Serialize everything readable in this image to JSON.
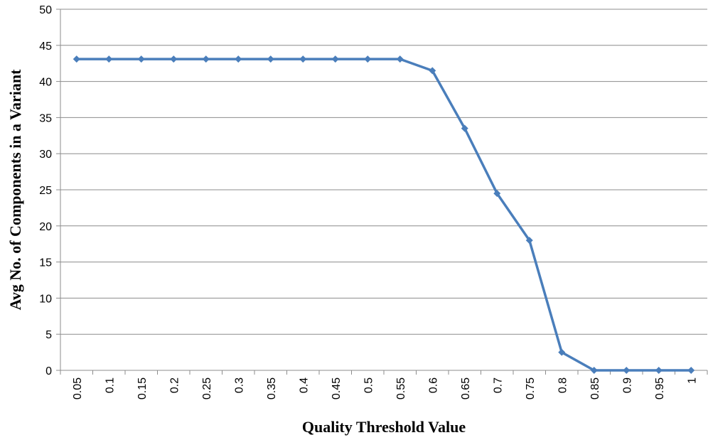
{
  "chart_data": {
    "type": "line",
    "title": "",
    "xlabel": "Quality Threshold Value",
    "ylabel": "Avg No. of Components in a Variant",
    "categories": [
      "0.05",
      "0.1",
      "0.15",
      "0.2",
      "0.25",
      "0.3",
      "0.35",
      "0.4",
      "0.45",
      "0.5",
      "0.55",
      "0.6",
      "0.65",
      "0.7",
      "0.75",
      "0.8",
      "0.85",
      "0.9",
      "0.95",
      "1"
    ],
    "series": [
      {
        "name": "",
        "color": "#4a7ebb",
        "marker": "diamond",
        "values": [
          43.1,
          43.1,
          43.1,
          43.1,
          43.1,
          43.1,
          43.1,
          43.1,
          43.1,
          43.1,
          43.1,
          41.5,
          33.5,
          24.5,
          18,
          2.5,
          0,
          0,
          0,
          0
        ]
      }
    ],
    "ylim": [
      0,
      50
    ],
    "yticks": [
      "0",
      "5",
      "10",
      "15",
      "20",
      "25",
      "30",
      "35",
      "40",
      "45",
      "50"
    ],
    "grid": "horizontal",
    "legend": "none",
    "colors": {
      "gridline": "#8c8c8c",
      "axis": "#8c8c8c",
      "line": "#4a7ebb"
    }
  }
}
